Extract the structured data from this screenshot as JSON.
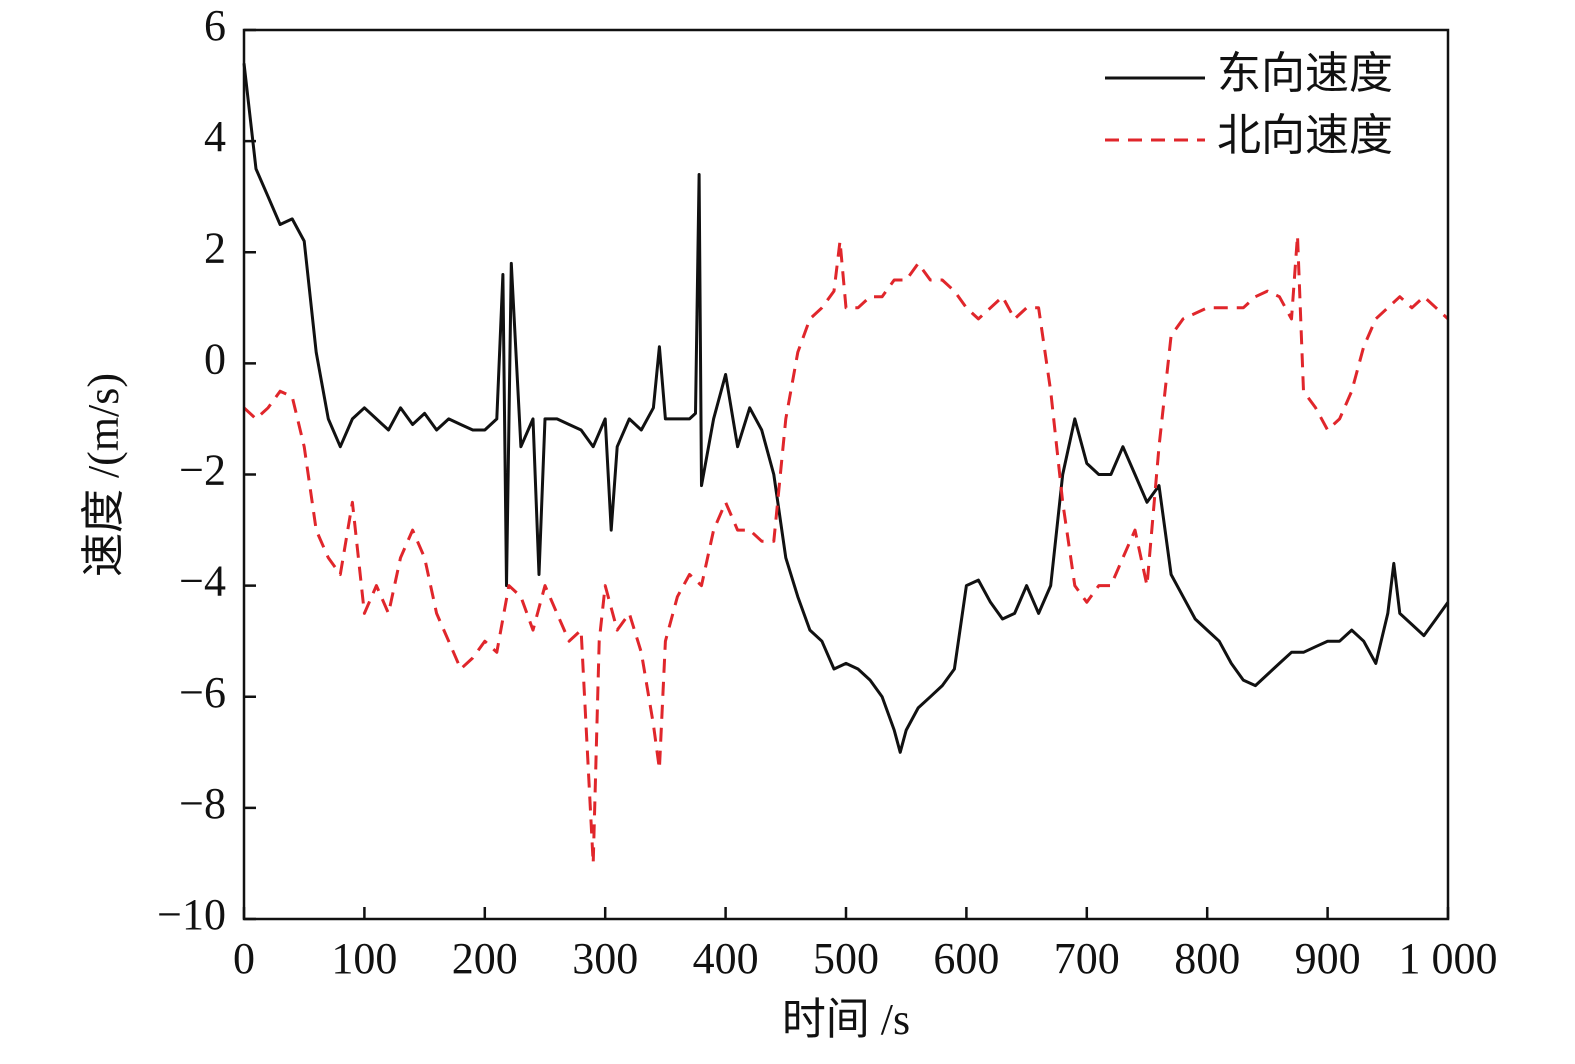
{
  "chart_data": {
    "type": "line",
    "xlabel": "时间 /s",
    "ylabel": "速度 /(m/s)",
    "xlim": [
      0,
      1000
    ],
    "ylim": [
      -10,
      6
    ],
    "xticks": [
      0,
      100,
      200,
      300,
      400,
      500,
      600,
      700,
      800,
      900,
      {
        "value": 1000,
        "label": "1 000"
      }
    ],
    "yticks": [
      {
        "value": -10,
        "label": "−10"
      },
      {
        "value": -8,
        "label": "−8"
      },
      {
        "value": -6,
        "label": "−6"
      },
      {
        "value": -4,
        "label": "−4"
      },
      {
        "value": -2,
        "label": "−2"
      },
      0,
      2,
      4,
      6
    ],
    "legend": "upper right",
    "series": [
      {
        "name": "东向速度",
        "color": "#111111",
        "dash": "solid",
        "x": [
          0,
          10,
          20,
          30,
          40,
          50,
          60,
          70,
          80,
          90,
          100,
          110,
          120,
          130,
          140,
          150,
          160,
          170,
          180,
          190,
          200,
          210,
          215,
          218,
          222,
          230,
          240,
          245,
          250,
          260,
          270,
          280,
          290,
          300,
          305,
          310,
          320,
          330,
          340,
          345,
          350,
          360,
          370,
          375,
          378,
          380,
          390,
          400,
          410,
          420,
          430,
          440,
          450,
          460,
          470,
          480,
          490,
          500,
          510,
          520,
          530,
          540,
          545,
          550,
          560,
          570,
          580,
          590,
          600,
          610,
          620,
          630,
          640,
          650,
          660,
          670,
          680,
          690,
          700,
          710,
          720,
          730,
          740,
          750,
          760,
          770,
          780,
          790,
          800,
          810,
          820,
          830,
          840,
          850,
          860,
          870,
          880,
          890,
          900,
          910,
          920,
          930,
          940,
          950,
          955,
          960,
          970,
          980,
          990,
          1000
        ],
        "values": [
          5.4,
          3.5,
          3.0,
          2.5,
          2.6,
          2.2,
          0.2,
          -1.0,
          -1.5,
          -1.0,
          -0.8,
          -1.0,
          -1.2,
          -0.8,
          -1.1,
          -0.9,
          -1.2,
          -1.0,
          -1.1,
          -1.2,
          -1.2,
          -1.0,
          1.6,
          -4.0,
          1.8,
          -1.5,
          -1.0,
          -3.8,
          -1.0,
          -1.0,
          -1.1,
          -1.2,
          -1.5,
          -1.0,
          -3.0,
          -1.5,
          -1.0,
          -1.2,
          -0.8,
          0.3,
          -1.0,
          -1.0,
          -1.0,
          -0.9,
          3.4,
          -2.2,
          -1.0,
          -0.2,
          -1.5,
          -0.8,
          -1.2,
          -2.0,
          -3.5,
          -4.2,
          -4.8,
          -5.0,
          -5.5,
          -5.4,
          -5.5,
          -5.7,
          -6.0,
          -6.6,
          -7.0,
          -6.6,
          -6.2,
          -6.0,
          -5.8,
          -5.5,
          -4.0,
          -3.9,
          -4.3,
          -4.6,
          -4.5,
          -4.0,
          -4.5,
          -4.0,
          -2.0,
          -1.0,
          -1.8,
          -2.0,
          -2.0,
          -1.5,
          -2.0,
          -2.5,
          -2.2,
          -3.8,
          -4.2,
          -4.6,
          -4.8,
          -5.0,
          -5.4,
          -5.7,
          -5.8,
          -5.6,
          -5.4,
          -5.2,
          -5.2,
          -5.1,
          -5.0,
          -5.0,
          -4.8,
          -5.0,
          -5.4,
          -4.5,
          -3.6,
          -4.5,
          -4.7,
          -4.9,
          -4.6,
          -4.3
        ]
      },
      {
        "name": "北向速度",
        "color": "#e0262b",
        "dash": "dashed",
        "x": [
          0,
          10,
          20,
          30,
          40,
          50,
          60,
          70,
          80,
          90,
          100,
          110,
          120,
          130,
          140,
          150,
          160,
          170,
          180,
          190,
          200,
          210,
          220,
          230,
          240,
          250,
          260,
          270,
          280,
          290,
          295,
          300,
          310,
          320,
          330,
          340,
          345,
          350,
          360,
          370,
          380,
          390,
          400,
          410,
          420,
          430,
          440,
          450,
          460,
          470,
          480,
          490,
          495,
          500,
          510,
          520,
          530,
          540,
          550,
          560,
          570,
          580,
          590,
          600,
          610,
          620,
          630,
          640,
          650,
          660,
          670,
          680,
          690,
          700,
          710,
          720,
          730,
          740,
          750,
          760,
          770,
          780,
          790,
          800,
          810,
          820,
          830,
          840,
          850,
          860,
          870,
          875,
          880,
          890,
          900,
          910,
          920,
          930,
          940,
          950,
          960,
          970,
          980,
          990,
          1000
        ],
        "values": [
          -0.8,
          -1.0,
          -0.8,
          -0.5,
          -0.6,
          -1.5,
          -3.0,
          -3.5,
          -3.8,
          -2.5,
          -4.5,
          -4.0,
          -4.5,
          -3.5,
          -3.0,
          -3.5,
          -4.5,
          -5.0,
          -5.5,
          -5.3,
          -5.0,
          -5.2,
          -4.0,
          -4.2,
          -4.8,
          -4.0,
          -4.5,
          -5.0,
          -4.8,
          -9.0,
          -5.0,
          -4.0,
          -4.8,
          -4.5,
          -5.2,
          -6.5,
          -7.3,
          -5.0,
          -4.2,
          -3.8,
          -4.0,
          -3.0,
          -2.5,
          -3.0,
          -3.0,
          -3.2,
          -3.2,
          -1.0,
          0.2,
          0.8,
          1.0,
          1.3,
          2.2,
          1.0,
          1.0,
          1.2,
          1.2,
          1.5,
          1.5,
          1.8,
          1.5,
          1.5,
          1.3,
          1.0,
          0.8,
          1.0,
          1.2,
          0.8,
          1.0,
          1.0,
          -0.5,
          -2.5,
          -4.0,
          -4.3,
          -4.0,
          -4.0,
          -3.5,
          -3.0,
          -4.0,
          -1.5,
          0.5,
          0.8,
          0.9,
          1.0,
          1.0,
          1.0,
          1.0,
          1.2,
          1.3,
          1.2,
          0.8,
          2.3,
          -0.5,
          -0.8,
          -1.2,
          -1.0,
          -0.5,
          0.3,
          0.8,
          1.0,
          1.2,
          1.0,
          1.2,
          1.0,
          0.8
        ]
      }
    ]
  }
}
